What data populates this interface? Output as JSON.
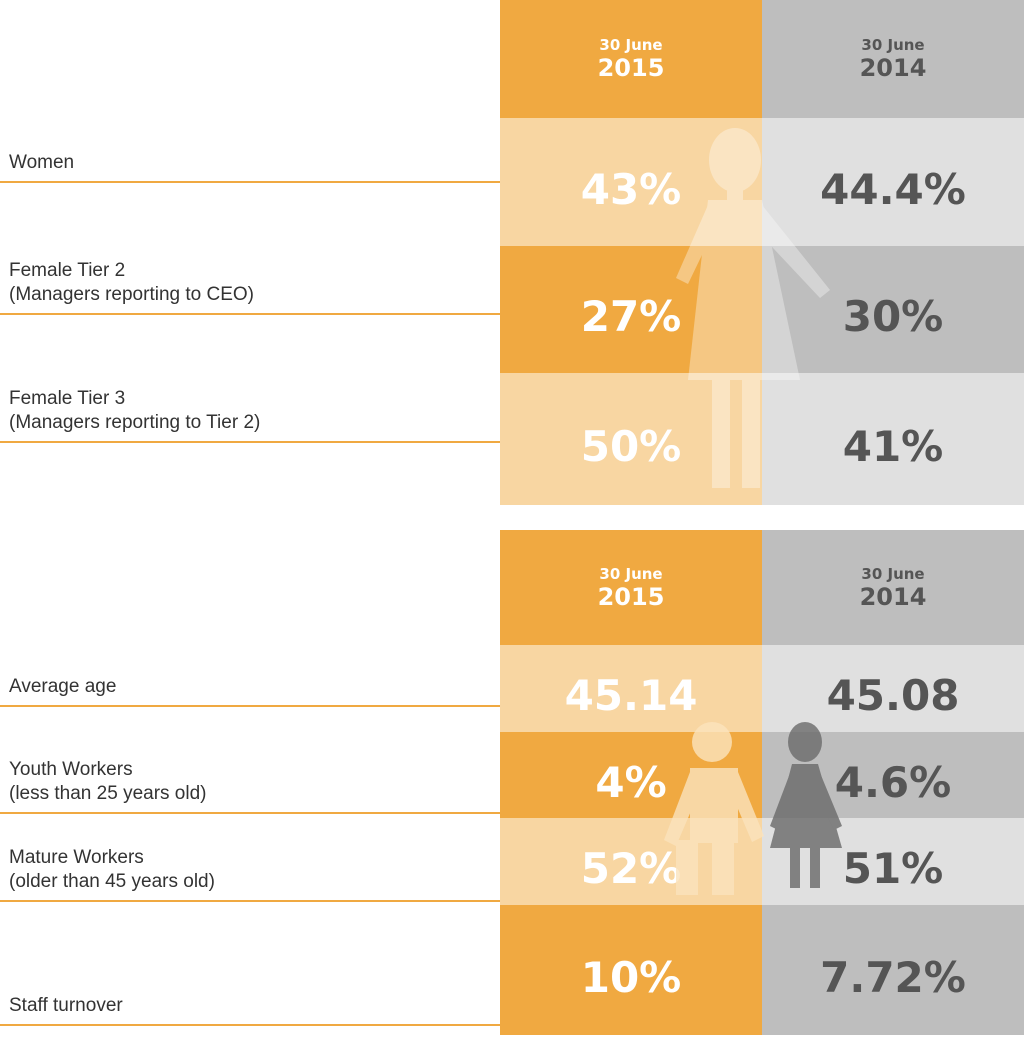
{
  "tables": [
    {
      "headers": [
        [
          "30 June",
          "2015"
        ],
        [
          "30 June",
          "2014"
        ]
      ],
      "rows": [
        {
          "label": [
            "Women"
          ],
          "values": [
            "43%",
            "44.4%"
          ]
        },
        {
          "label": [
            "Female Tier 2",
            "(Managers reporting to CEO)"
          ],
          "values": [
            "27%",
            "30%"
          ]
        },
        {
          "label": [
            "Female Tier 3",
            "(Managers reporting to Tier 2)"
          ],
          "values": [
            "50%",
            "41%"
          ]
        }
      ]
    },
    {
      "headers": [
        [
          "30 June",
          "2015"
        ],
        [
          "30 June",
          "2014"
        ]
      ],
      "rows": [
        {
          "label": [
            "Average age"
          ],
          "values": [
            "45.14",
            "45.08"
          ]
        },
        {
          "label": [
            "Youth Workers",
            "(less than 25 years old)"
          ],
          "values": [
            "4%",
            "4.6%"
          ]
        },
        {
          "label": [
            "Mature Workers",
            "(older than 45 years old)"
          ],
          "values": [
            "52%",
            "51%"
          ]
        },
        {
          "label": [
            "Staff turnover"
          ],
          "values": [
            "10%",
            "7.72%"
          ]
        }
      ]
    }
  ]
}
